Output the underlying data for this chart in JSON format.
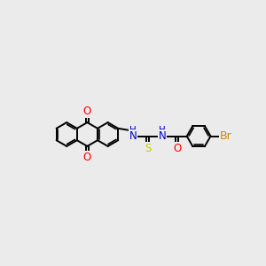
{
  "bg_color": "#ebebeb",
  "bond_color": "#000000",
  "bond_width": 1.4,
  "atom_colors": {
    "O": "#ff0000",
    "N": "#0000cd",
    "S": "#cccc00",
    "Br": "#cc8800",
    "C": "#000000"
  },
  "font_size_NH": 8.0,
  "font_size_atom": 8.5
}
